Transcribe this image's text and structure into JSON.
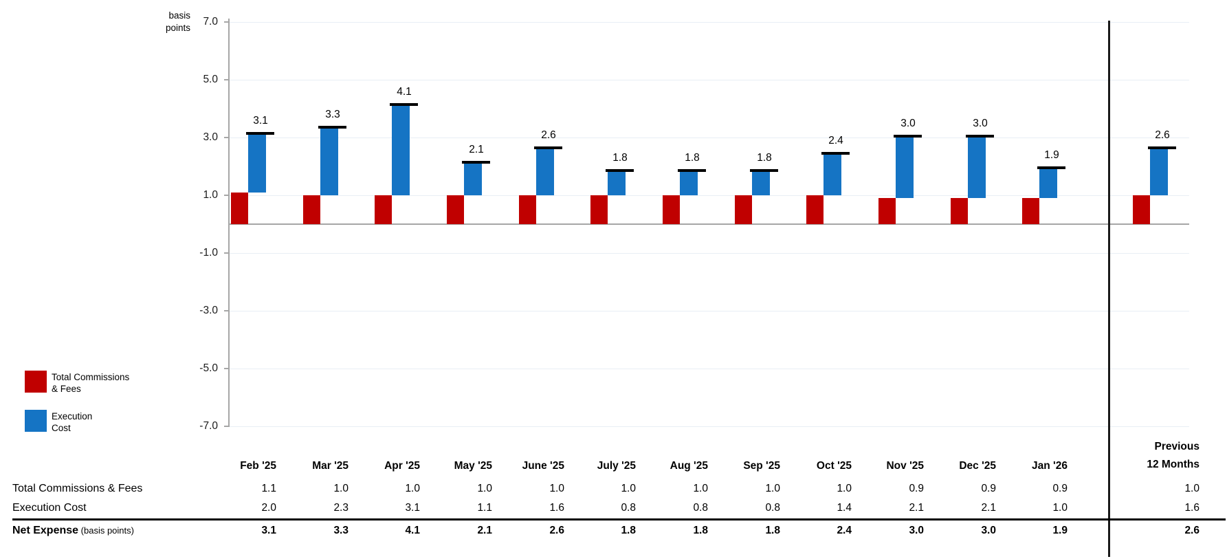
{
  "chart": {
    "axis_unit_line1": "basis",
    "axis_unit_line2": "points",
    "legend": [
      {
        "label_line1": "Total Commissions",
        "label_line2": "& Fees",
        "color": "#C00000"
      },
      {
        "label_line1": "Execution",
        "label_line2": "Cost",
        "color": "#1574C4"
      }
    ]
  },
  "chart_data": {
    "type": "bar",
    "subtype": "stacked-offset-with-total-markers",
    "unit": "basis points",
    "categories": [
      "Feb '25",
      "Mar '25",
      "Apr '25",
      "May '25",
      "June '25",
      "July '25",
      "Aug '25",
      "Sep '25",
      "Oct '25",
      "Nov '25",
      "Dec '25",
      "Jan '26"
    ],
    "summary_category": "Previous 12 Months",
    "series": [
      {
        "name": "Total Commissions & Fees",
        "color": "#C00000",
        "values": [
          1.1,
          1.0,
          1.0,
          1.0,
          1.0,
          1.0,
          1.0,
          1.0,
          1.0,
          0.9,
          0.9,
          0.9
        ],
        "summary_value": 1.0
      },
      {
        "name": "Execution Cost",
        "color": "#1574C4",
        "values": [
          2.0,
          2.3,
          3.1,
          1.1,
          1.6,
          0.8,
          0.8,
          0.8,
          1.4,
          2.1,
          2.1,
          1.0
        ],
        "summary_value": 1.6
      }
    ],
    "totals": {
      "name": "Net Expense",
      "labels": [
        "3.1",
        "3.3",
        "4.1",
        "2.1",
        "2.6",
        "1.8",
        "1.8",
        "1.8",
        "2.4",
        "3.0",
        "3.0",
        "1.9"
      ],
      "summary_label": "2.6"
    },
    "y_ticks": [
      "7.0",
      "5.0",
      "3.0",
      "1.0",
      "-1.0",
      "-3.0",
      "-5.0",
      "-7.0"
    ],
    "ylim": [
      -7,
      7
    ],
    "gridlines": true,
    "legend_position": "bottom-left"
  },
  "table": {
    "columns": [
      "Feb '25",
      "Mar '25",
      "Apr '25",
      "May '25",
      "June '25",
      "July '25",
      "Aug '25",
      "Sep '25",
      "Oct '25",
      "Nov '25",
      "Dec '25",
      "Jan '26"
    ],
    "summary_column_line1": "Previous",
    "summary_column_line2": "12 Months",
    "rows": [
      {
        "label": "Total Commissions & Fees",
        "suffix": "",
        "bold": false,
        "values": [
          "1.1",
          "1.0",
          "1.0",
          "1.0",
          "1.0",
          "1.0",
          "1.0",
          "1.0",
          "1.0",
          "0.9",
          "0.9",
          "0.9"
        ],
        "summary": "1.0"
      },
      {
        "label": "Execution Cost",
        "suffix": "",
        "bold": false,
        "values": [
          "2.0",
          "2.3",
          "3.1",
          "1.1",
          "1.6",
          "0.8",
          "0.8",
          "0.8",
          "1.4",
          "2.1",
          "2.1",
          "1.0"
        ],
        "summary": "1.6"
      },
      {
        "label": "Net Expense",
        "suffix": " (basis points)",
        "bold": true,
        "values": [
          "3.1",
          "3.3",
          "4.1",
          "2.1",
          "2.6",
          "1.8",
          "1.8",
          "1.8",
          "2.4",
          "3.0",
          "3.0",
          "1.9"
        ],
        "summary": "2.6"
      }
    ]
  }
}
